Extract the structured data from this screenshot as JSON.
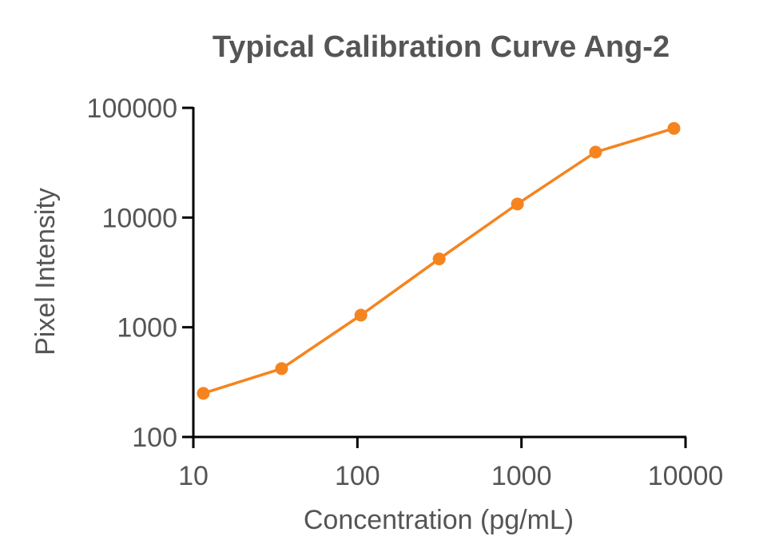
{
  "chart_data": {
    "type": "line",
    "title": "Typical Calibration Curve Ang-2",
    "xlabel": "Concentration (pg/mL)",
    "ylabel": "Pixel Intensity",
    "xscale": "log",
    "yscale": "log",
    "xlim": [
      10,
      10000
    ],
    "ylim": [
      100,
      100000
    ],
    "x_ticks": [
      10,
      100,
      1000,
      10000
    ],
    "x_tick_labels": [
      "10",
      "100",
      "1000",
      "10000"
    ],
    "y_ticks": [
      100,
      1000,
      10000,
      100000
    ],
    "y_tick_labels": [
      "100",
      "1000",
      "10000",
      "100000"
    ],
    "grid": false,
    "legend": "none",
    "series": [
      {
        "color": "#F5841F",
        "marker": "circle",
        "x": [
          11.5,
          34.5,
          105,
          315,
          945,
          2830,
          8500
        ],
        "y": [
          250,
          420,
          1290,
          4200,
          13300,
          39500,
          65000
        ]
      }
    ]
  }
}
